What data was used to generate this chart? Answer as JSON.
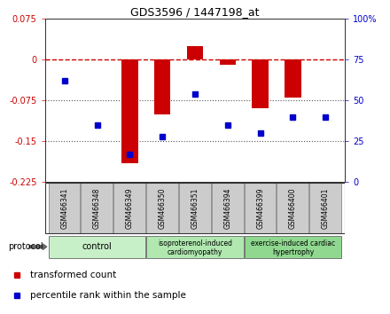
{
  "title": "GDS3596 / 1447198_at",
  "samples": [
    "GSM466341",
    "GSM466348",
    "GSM466349",
    "GSM466350",
    "GSM466351",
    "GSM466394",
    "GSM466399",
    "GSM466400",
    "GSM466401"
  ],
  "transformed_count": [
    0.0,
    0.0,
    -0.19,
    -0.1,
    0.025,
    -0.01,
    -0.09,
    -0.07,
    0.0
  ],
  "percentile_rank": [
    62,
    35,
    17,
    28,
    54,
    35,
    30,
    40,
    40
  ],
  "groups": [
    {
      "label": "control",
      "start": 0,
      "end": 3,
      "color": "#c8f0c8"
    },
    {
      "label": "isoproterenol-induced\ncardiomyopathy",
      "start": 3,
      "end": 6,
      "color": "#b0e8b0"
    },
    {
      "label": "exercise-induced cardiac\nhypertrophy",
      "start": 6,
      "end": 9,
      "color": "#90d890"
    }
  ],
  "ylim_left": [
    -0.225,
    0.075
  ],
  "ylim_right": [
    0,
    100
  ],
  "yticks_left": [
    0.075,
    0.0,
    -0.075,
    -0.15,
    -0.225
  ],
  "yticks_left_labels": [
    "0.075",
    "0",
    "-0.075",
    "-0.15",
    "-0.225"
  ],
  "yticks_right": [
    100,
    75,
    50,
    25,
    0
  ],
  "yticks_right_labels": [
    "100%",
    "75",
    "50",
    "25",
    "0"
  ],
  "bar_color": "#cc0000",
  "dot_color": "#0000cc",
  "dashed_line_color": "#cc0000",
  "dotted_line_color": "#555555",
  "bar_width": 0.5,
  "protocol_label": "protocol",
  "legend_items": [
    {
      "color": "#cc0000",
      "label": "transformed count"
    },
    {
      "color": "#0000cc",
      "label": "percentile rank within the sample"
    }
  ],
  "sample_box_color": "#cccccc",
  "sample_box_edge": "#888888",
  "fig_bg": "#ffffff"
}
